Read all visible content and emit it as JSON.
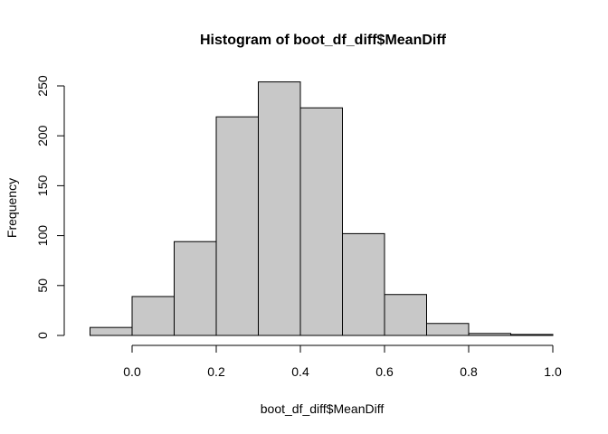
{
  "chart_data": {
    "type": "bar",
    "title": "Histogram of boot_df_diff$MeanDiff",
    "xlabel": "boot_df_diff$MeanDiff",
    "ylabel": "Frequency",
    "bins": [
      {
        "from": -0.1,
        "to": 0.0,
        "value": 8
      },
      {
        "from": 0.0,
        "to": 0.1,
        "value": 39
      },
      {
        "from": 0.1,
        "to": 0.2,
        "value": 94
      },
      {
        "from": 0.2,
        "to": 0.3,
        "value": 219
      },
      {
        "from": 0.3,
        "to": 0.4,
        "value": 254
      },
      {
        "from": 0.4,
        "to": 0.5,
        "value": 228
      },
      {
        "from": 0.5,
        "to": 0.6,
        "value": 102
      },
      {
        "from": 0.6,
        "to": 0.7,
        "value": 41
      },
      {
        "from": 0.7,
        "to": 0.8,
        "value": 12
      },
      {
        "from": 0.8,
        "to": 0.9,
        "value": 2
      },
      {
        "from": 0.9,
        "to": 1.0,
        "value": 1
      }
    ],
    "x_ticks": [
      0.0,
      0.2,
      0.4,
      0.6,
      0.8,
      1.0
    ],
    "x_tick_labels": [
      "0.0",
      "0.2",
      "0.4",
      "0.6",
      "0.8",
      "1.0"
    ],
    "y_ticks": [
      0,
      50,
      100,
      150,
      200,
      250
    ],
    "y_tick_labels": [
      "0",
      "50",
      "100",
      "150",
      "200",
      "250"
    ],
    "xlim": [
      -0.1,
      1.0
    ],
    "ylim": [
      0,
      250
    ],
    "grid": false,
    "bar_color": "#c8c8c8",
    "edge_color": "#000000"
  }
}
